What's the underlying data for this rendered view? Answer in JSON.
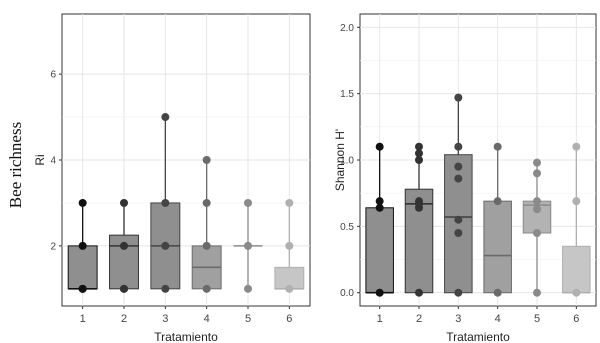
{
  "figure_side_label": "Bee richness",
  "chart_data": [
    {
      "type": "box",
      "xlabel": "Tratamiento",
      "ylabel": "Ri",
      "ylim": [
        0.6,
        7.4
      ],
      "yticks": [
        2,
        4,
        6
      ],
      "grid": true,
      "categories": [
        "1",
        "2",
        "3",
        "4",
        "5",
        "6"
      ],
      "boxes": [
        {
          "category": "1",
          "min": 1,
          "q1": 1,
          "median": 1,
          "q3": 2,
          "max": 3,
          "fill": "#8f8f8f"
        },
        {
          "category": "2",
          "min": 1,
          "q1": 1,
          "median": 2,
          "q3": 2.25,
          "max": 3,
          "fill": "#8f8f8f"
        },
        {
          "category": "3",
          "min": 1,
          "q1": 1,
          "median": 2,
          "q3": 3,
          "max": 5,
          "fill": "#8f8f8f"
        },
        {
          "category": "4",
          "min": 1,
          "q1": 1,
          "median": 1.5,
          "q3": 2,
          "max": 4,
          "fill": "#a0a0a0"
        },
        {
          "category": "5",
          "min": 1,
          "q1": 2,
          "median": 2,
          "q3": 2,
          "max": 3,
          "fill": "#b3b3b3"
        },
        {
          "category": "6",
          "min": 1,
          "q1": 1,
          "median": 1,
          "q3": 1.5,
          "max": 3,
          "fill": "#c6c6c6"
        }
      ],
      "points": [
        {
          "category": "1",
          "values": [
            1,
            1,
            2,
            3,
            1
          ]
        },
        {
          "category": "2",
          "values": [
            1,
            2,
            3,
            1
          ]
        },
        {
          "category": "3",
          "values": [
            1,
            2,
            3,
            5
          ]
        },
        {
          "category": "4",
          "values": [
            1,
            3,
            4,
            2
          ]
        },
        {
          "category": "5",
          "values": [
            1,
            2,
            3
          ]
        },
        {
          "category": "6",
          "values": [
            1,
            2,
            3
          ]
        }
      ],
      "point_colors": [
        "#111111",
        "#333333",
        "#444444",
        "#6a6a6a",
        "#8a8a8a",
        "#b0b0b0"
      ]
    },
    {
      "type": "box",
      "xlabel": "Tratamiento",
      "ylabel": "Shannon H'",
      "ylim": [
        -0.1,
        2.1
      ],
      "yticks": [
        0.0,
        0.5,
        1.0,
        1.5,
        2.0
      ],
      "ytick_labels": [
        "0.0",
        "0.5",
        "1.0",
        "1.5",
        "2.0"
      ],
      "grid": true,
      "categories": [
        "1",
        "2",
        "3",
        "4",
        "5",
        "6"
      ],
      "boxes": [
        {
          "category": "1",
          "min": 0,
          "q1": 0,
          "median": 0,
          "q3": 0.64,
          "max": 1.1,
          "fill": "#8f8f8f"
        },
        {
          "category": "2",
          "min": 0,
          "q1": 0,
          "median": 0.67,
          "q3": 0.78,
          "max": 1.1,
          "fill": "#8f8f8f"
        },
        {
          "category": "3",
          "min": 0,
          "q1": 0,
          "median": 0.57,
          "q3": 1.04,
          "max": 1.47,
          "fill": "#8f8f8f"
        },
        {
          "category": "4",
          "min": 0,
          "q1": 0,
          "median": 0.28,
          "q3": 0.69,
          "max": 1.1,
          "fill": "#a0a0a0"
        },
        {
          "category": "5",
          "min": 0,
          "q1": 0.45,
          "median": 0.66,
          "q3": 0.69,
          "max": 0.98,
          "fill": "#b3b3b3"
        },
        {
          "category": "6",
          "min": 0,
          "q1": 0,
          "median": 0,
          "q3": 0.35,
          "max": 1.1,
          "fill": "#c6c6c6"
        }
      ],
      "points": [
        {
          "category": "1",
          "values": [
            0,
            0.64,
            0.69,
            1.1
          ]
        },
        {
          "category": "2",
          "values": [
            0,
            0.64,
            0.69,
            0.67,
            1.0,
            1.05,
            1.1
          ]
        },
        {
          "category": "3",
          "values": [
            0,
            0.45,
            0.55,
            0.86,
            0.95,
            1.1,
            1.47
          ]
        },
        {
          "category": "4",
          "values": [
            0,
            0.69,
            1.1
          ]
        },
        {
          "category": "5",
          "values": [
            0,
            0.45,
            0.63,
            0.69,
            0.9,
            0.98
          ]
        },
        {
          "category": "6",
          "values": [
            0,
            0.69,
            1.1
          ]
        }
      ],
      "point_colors": [
        "#111111",
        "#333333",
        "#444444",
        "#6a6a6a",
        "#8a8a8a",
        "#b0b0b0"
      ]
    }
  ]
}
